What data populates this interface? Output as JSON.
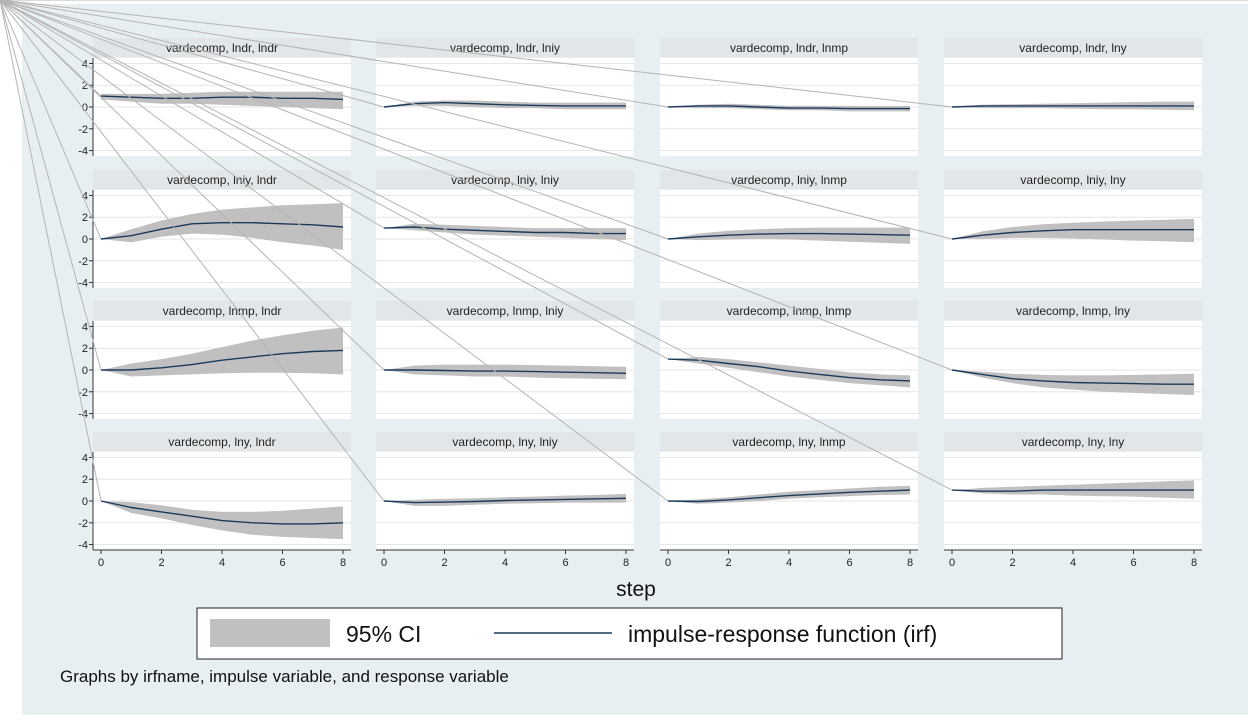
{
  "chart_data": {
    "type": "line",
    "layout": "small multiples, 4 rows x 4 columns",
    "xlabel": "step",
    "x_ticks": [
      "0",
      "2",
      "4",
      "6",
      "8"
    ],
    "y_ticks": [
      "4",
      "2",
      "0",
      "-2",
      "-4"
    ],
    "xlim": [
      0,
      8
    ],
    "ylim": [
      -4.5,
      4.5
    ],
    "grid": true,
    "legend": {
      "position": "bottom",
      "items": [
        {
          "label": "95% CI",
          "kind": "band",
          "color": "#c0c0c0"
        },
        {
          "label": "impulse-response function (irf)",
          "kind": "line",
          "color": "#1a3a5c"
        }
      ]
    },
    "note": "Graphs by irfname, impulse variable, and response variable",
    "colors": {
      "background": "#e8eff3",
      "plot_area": "#ffffff",
      "title_strip": "#e2e6e9",
      "band": "#c0c0c0",
      "line": "#1a3a5c",
      "gridline": "#e6e6e6"
    },
    "x": [
      0,
      1,
      2,
      3,
      4,
      5,
      6,
      7,
      8
    ],
    "panels": [
      {
        "title": "vardecomp, lndr, lndr",
        "irf": [
          1,
          0.9,
          0.8,
          0.8,
          0.9,
          0.9,
          0.8,
          0.8,
          0.7
        ],
        "lower": [
          0.7,
          0.5,
          0.3,
          0.3,
          0.2,
          0.1,
          0.0,
          -0.1,
          -0.2
        ],
        "upper": [
          1.2,
          1.2,
          1.2,
          1.3,
          1.4,
          1.4,
          1.4,
          1.4,
          1.4
        ]
      },
      {
        "title": "vardecomp, lndr, lniy",
        "irf": [
          0,
          0.3,
          0.4,
          0.3,
          0.2,
          0.15,
          0.1,
          0.1,
          0.1
        ],
        "lower": [
          0,
          0.1,
          0.1,
          0.0,
          -0.1,
          -0.1,
          -0.2,
          -0.2,
          -0.2
        ],
        "upper": [
          0,
          0.5,
          0.6,
          0.6,
          0.5,
          0.4,
          0.4,
          0.4,
          0.4
        ]
      },
      {
        "title": "vardecomp, lndr, lnmp",
        "irf": [
          0,
          0.1,
          0.1,
          0.0,
          -0.1,
          -0.1,
          -0.15,
          -0.15,
          -0.15
        ],
        "lower": [
          0,
          -0.1,
          -0.1,
          -0.2,
          -0.3,
          -0.3,
          -0.4,
          -0.4,
          -0.4
        ],
        "upper": [
          0,
          0.2,
          0.3,
          0.2,
          0.1,
          0.1,
          0.1,
          0.1,
          0.1
        ]
      },
      {
        "title": "vardecomp, lndr, lny",
        "irf": [
          0,
          0.1,
          0.1,
          0.1,
          0.1,
          0.1,
          0.1,
          0.1,
          0.1
        ],
        "lower": [
          0,
          -0.1,
          -0.1,
          -0.1,
          -0.15,
          -0.2,
          -0.2,
          -0.25,
          -0.3
        ],
        "upper": [
          0,
          0.2,
          0.25,
          0.3,
          0.35,
          0.4,
          0.45,
          0.5,
          0.5
        ]
      },
      {
        "title": "vardecomp, lniy, lndr",
        "irf": [
          0,
          0.3,
          0.9,
          1.4,
          1.5,
          1.5,
          1.4,
          1.3,
          1.1
        ],
        "lower": [
          0,
          -0.3,
          0.2,
          0.5,
          0.4,
          0.1,
          -0.3,
          -0.6,
          -1.0
        ],
        "upper": [
          0,
          0.9,
          1.7,
          2.3,
          2.7,
          2.9,
          3.1,
          3.2,
          3.3
        ]
      },
      {
        "title": "vardecomp, lniy, lniy",
        "irf": [
          1,
          1.1,
          0.9,
          0.8,
          0.7,
          0.6,
          0.6,
          0.5,
          0.5
        ],
        "lower": [
          1,
          0.8,
          0.6,
          0.4,
          0.3,
          0.2,
          0.1,
          0.0,
          -0.1
        ],
        "upper": [
          1,
          1.4,
          1.3,
          1.2,
          1.1,
          1.0,
          1.0,
          1.0,
          1.0
        ]
      },
      {
        "title": "vardecomp, lniy, lnmp",
        "irf": [
          0,
          0.2,
          0.35,
          0.45,
          0.5,
          0.5,
          0.45,
          0.4,
          0.35
        ],
        "lower": [
          0,
          -0.1,
          -0.05,
          0.0,
          -0.05,
          -0.15,
          -0.25,
          -0.35,
          -0.45
        ],
        "upper": [
          0,
          0.5,
          0.75,
          0.9,
          1.0,
          1.05,
          1.05,
          1.05,
          1.05
        ]
      },
      {
        "title": "vardecomp, lniy, lny",
        "irf": [
          0,
          0.35,
          0.6,
          0.75,
          0.85,
          0.85,
          0.85,
          0.85,
          0.85
        ],
        "lower": [
          0,
          0.0,
          0.1,
          0.1,
          0.05,
          -0.05,
          -0.15,
          -0.2,
          -0.3
        ],
        "upper": [
          0,
          0.7,
          1.1,
          1.35,
          1.5,
          1.6,
          1.7,
          1.75,
          1.85
        ]
      },
      {
        "title": "vardecomp, lnmp, lndr",
        "irf": [
          0,
          0.0,
          0.2,
          0.5,
          0.9,
          1.2,
          1.5,
          1.7,
          1.8
        ],
        "lower": [
          0,
          -0.6,
          -0.5,
          -0.4,
          -0.3,
          -0.25,
          -0.25,
          -0.3,
          -0.4
        ],
        "upper": [
          0,
          0.6,
          1.0,
          1.5,
          2.1,
          2.7,
          3.2,
          3.6,
          3.9
        ]
      },
      {
        "title": "vardecomp, lnmp, lniy",
        "irf": [
          0,
          0.0,
          -0.05,
          -0.1,
          -0.1,
          -0.15,
          -0.2,
          -0.25,
          -0.3
        ],
        "lower": [
          0,
          -0.4,
          -0.5,
          -0.6,
          -0.6,
          -0.7,
          -0.75,
          -0.8,
          -0.85
        ],
        "upper": [
          0,
          0.4,
          0.5,
          0.5,
          0.5,
          0.45,
          0.4,
          0.35,
          0.3
        ]
      },
      {
        "title": "vardecomp, lnmp, lnmp",
        "irf": [
          1,
          0.9,
          0.6,
          0.3,
          -0.1,
          -0.4,
          -0.7,
          -0.9,
          -1.0
        ],
        "lower": [
          1,
          0.6,
          0.2,
          -0.2,
          -0.6,
          -0.9,
          -1.2,
          -1.4,
          -1.6
        ],
        "upper": [
          1,
          1.2,
          1.0,
          0.7,
          0.4,
          0.1,
          -0.2,
          -0.4,
          -0.5
        ]
      },
      {
        "title": "vardecomp, lnmp, lny",
        "irf": [
          0,
          -0.4,
          -0.8,
          -1.0,
          -1.15,
          -1.2,
          -1.25,
          -1.3,
          -1.3
        ],
        "lower": [
          0,
          -0.7,
          -1.2,
          -1.6,
          -1.8,
          -2.0,
          -2.1,
          -2.2,
          -2.3
        ],
        "upper": [
          0,
          -0.15,
          -0.35,
          -0.45,
          -0.5,
          -0.5,
          -0.45,
          -0.4,
          -0.35
        ]
      },
      {
        "title": "vardecomp, lny, lndr",
        "irf": [
          0,
          -0.6,
          -1.0,
          -1.4,
          -1.8,
          -2.0,
          -2.1,
          -2.1,
          -2.0
        ],
        "lower": [
          0,
          -1.1,
          -1.6,
          -2.2,
          -2.7,
          -3.1,
          -3.3,
          -3.4,
          -3.5
        ],
        "upper": [
          0,
          -0.1,
          -0.4,
          -0.8,
          -1.0,
          -1.0,
          -0.9,
          -0.7,
          -0.5
        ]
      },
      {
        "title": "vardecomp, lny, lniy",
        "irf": [
          0,
          -0.15,
          -0.1,
          -0.05,
          0.05,
          0.1,
          0.15,
          0.2,
          0.25
        ],
        "lower": [
          0,
          -0.45,
          -0.45,
          -0.35,
          -0.25,
          -0.2,
          -0.15,
          -0.15,
          -0.15
        ],
        "upper": [
          0,
          0.1,
          0.2,
          0.25,
          0.35,
          0.4,
          0.5,
          0.55,
          0.65
        ]
      },
      {
        "title": "vardecomp, lny, lnmp",
        "irf": [
          0,
          -0.05,
          0.1,
          0.3,
          0.5,
          0.65,
          0.8,
          0.9,
          1.0
        ],
        "lower": [
          0,
          -0.25,
          -0.15,
          0.0,
          0.2,
          0.35,
          0.45,
          0.55,
          0.6
        ],
        "upper": [
          0,
          0.15,
          0.35,
          0.6,
          0.85,
          1.0,
          1.15,
          1.3,
          1.4
        ]
      },
      {
        "title": "vardecomp, lny, lny",
        "irf": [
          1,
          0.9,
          0.9,
          1.0,
          1.0,
          1.0,
          1.0,
          1.0,
          1.0
        ],
        "lower": [
          1,
          0.7,
          0.6,
          0.6,
          0.5,
          0.45,
          0.4,
          0.3,
          0.2
        ],
        "upper": [
          1,
          1.2,
          1.3,
          1.4,
          1.5,
          1.6,
          1.7,
          1.8,
          1.9
        ]
      }
    ]
  }
}
